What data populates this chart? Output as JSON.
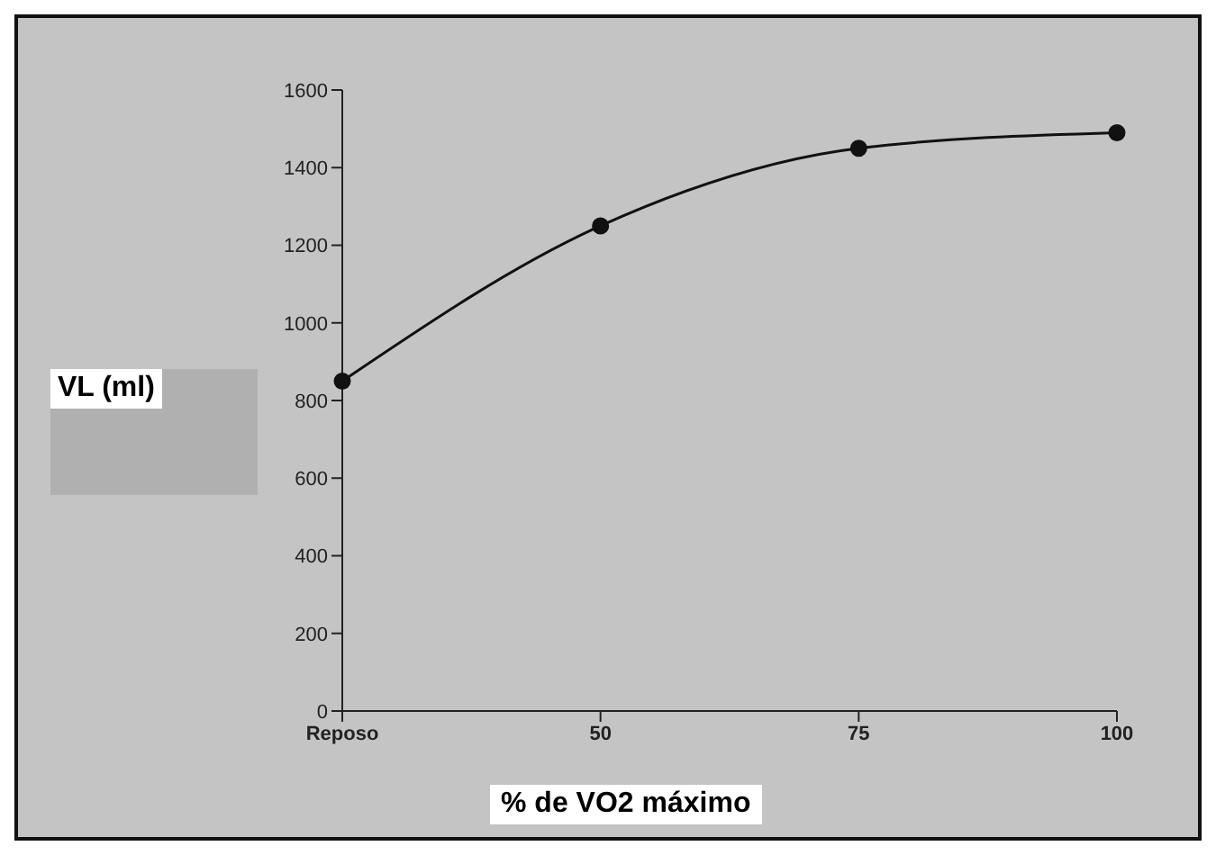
{
  "chart_data": {
    "type": "line",
    "xlabel": "% de VO2 máximo",
    "ylabel": "VL (ml)",
    "categories": [
      "Reposo",
      "50",
      "75",
      "100"
    ],
    "series": [
      {
        "color": "#111111",
        "values": [
          850,
          1250,
          1450,
          1490
        ]
      }
    ],
    "ylim": [
      0,
      1600
    ],
    "yticks": [
      0,
      200,
      400,
      600,
      800,
      1000,
      1200,
      1400,
      1600
    ],
    "grid": false,
    "legend": false,
    "marker": "circle",
    "line_style": "solid"
  }
}
